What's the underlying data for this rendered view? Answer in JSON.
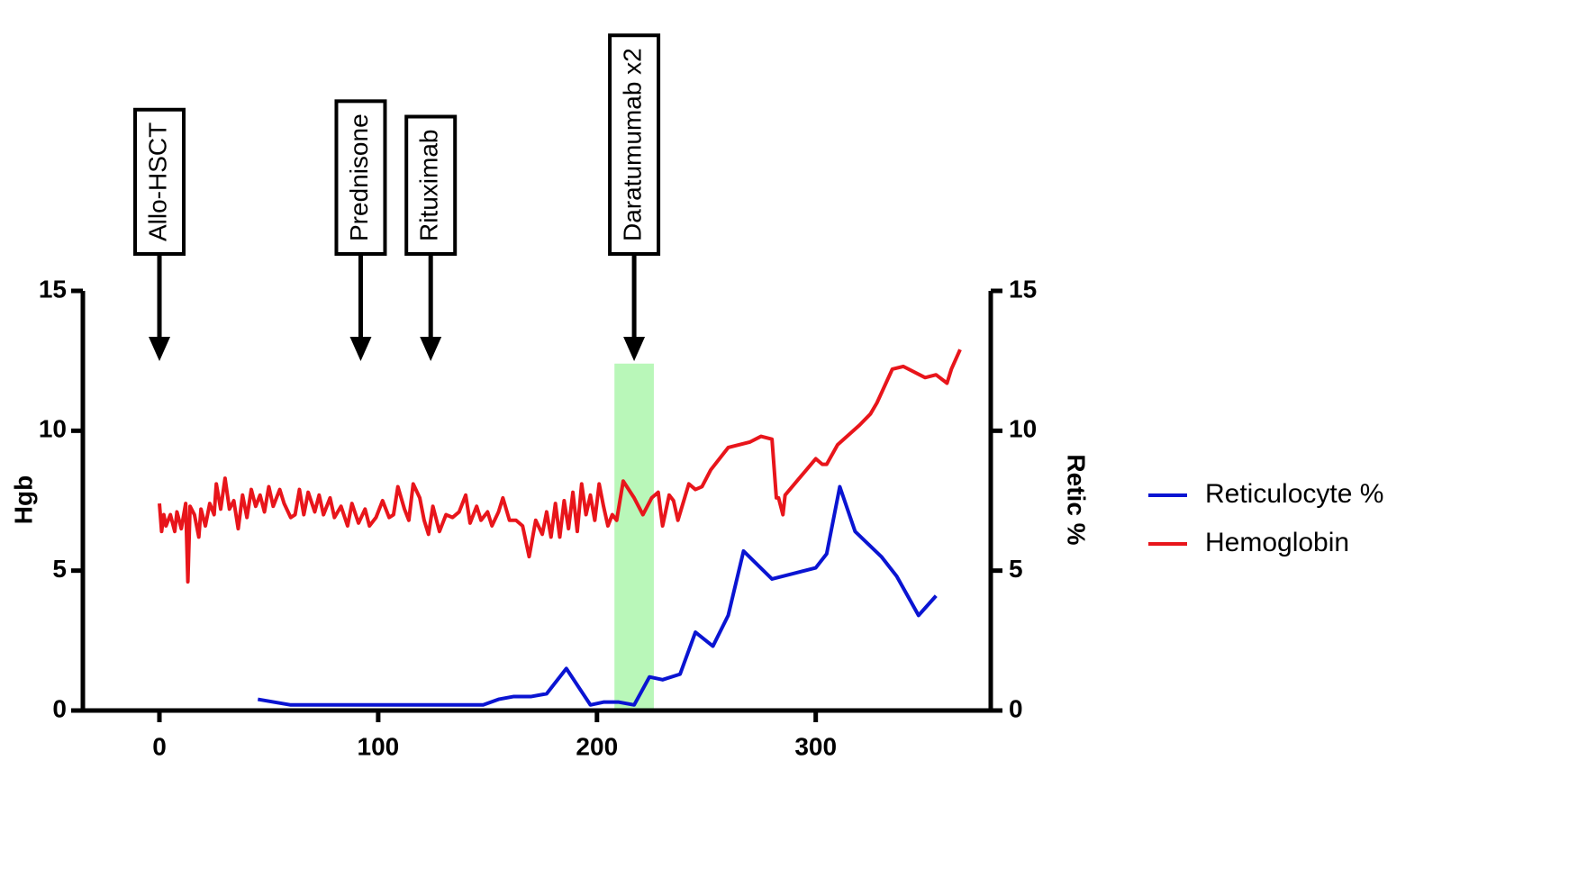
{
  "chart_data": {
    "type": "line",
    "ylabel": "Hgb",
    "y2label": "Retic %",
    "xlim": [
      -35,
      380
    ],
    "xticks": [
      0,
      100,
      200,
      300
    ],
    "ylim": [
      0,
      15
    ],
    "yticks": [
      0,
      5,
      10,
      15
    ],
    "y2lim": [
      0,
      15
    ],
    "y2ticks": [
      0,
      5,
      10,
      15
    ],
    "legend": "right",
    "highlight": {
      "x": [
        208,
        226
      ],
      "top": 12.4,
      "color": "#b9f7b9"
    },
    "annotations": [
      {
        "text": "Allo-HSCT",
        "x": 0
      },
      {
        "text": "Prednisone",
        "x": 92
      },
      {
        "text": "Rituximab",
        "x": 124
      },
      {
        "text": "Daratumumab x2",
        "x": 217
      }
    ],
    "series": [
      {
        "name": "Reticulocyte %",
        "color": "#0a14d2",
        "axis": "y2",
        "x": [
          45,
          60,
          100,
          148,
          155,
          162,
          170,
          177,
          186,
          197,
          203,
          210,
          217,
          224,
          230,
          238,
          245,
          253,
          260,
          267,
          280,
          300,
          305,
          311,
          318,
          330,
          337,
          347,
          355
        ],
        "values": [
          0.4,
          0.2,
          0.2,
          0.2,
          0.4,
          0.5,
          0.5,
          0.6,
          1.5,
          0.2,
          0.3,
          0.3,
          0.2,
          1.2,
          1.1,
          1.3,
          2.8,
          2.3,
          3.4,
          5.7,
          4.7,
          5.1,
          5.6,
          8.0,
          6.4,
          5.5,
          4.8,
          3.4,
          4.1
        ]
      },
      {
        "name": "Hemoglobin",
        "color": "#e8151b",
        "axis": "y",
        "x": [
          0,
          1,
          2,
          3,
          5,
          7,
          8,
          10,
          12,
          13,
          14,
          16,
          18,
          19,
          21,
          23,
          25,
          26,
          28,
          30,
          32,
          34,
          36,
          38,
          40,
          42,
          44,
          46,
          48,
          50,
          52,
          55,
          57,
          60,
          62,
          64,
          66,
          68,
          71,
          73,
          75,
          78,
          80,
          83,
          86,
          88,
          91,
          94,
          96,
          99,
          102,
          105,
          107,
          109,
          112,
          114,
          116,
          119,
          121,
          123,
          125,
          128,
          131,
          134,
          137,
          140,
          142,
          145,
          147,
          150,
          152,
          155,
          157,
          160,
          163,
          166,
          169,
          172,
          175,
          177,
          179,
          181,
          183,
          185,
          187,
          189,
          191,
          193,
          195,
          197,
          199,
          201,
          203,
          205,
          207,
          209,
          212,
          217,
          221,
          225,
          228,
          230,
          233,
          235,
          237,
          242,
          245,
          248,
          252,
          260,
          270,
          275,
          280,
          282,
          283,
          285,
          286,
          300,
          303,
          305,
          310,
          320,
          325,
          328,
          335,
          340,
          350,
          355,
          360,
          362,
          366
        ],
        "values": [
          7.4,
          6.4,
          7.0,
          6.6,
          7.0,
          6.4,
          7.1,
          6.5,
          7.4,
          4.6,
          7.3,
          7.0,
          6.2,
          7.2,
          6.6,
          7.4,
          7.0,
          8.1,
          7.2,
          8.3,
          7.2,
          7.5,
          6.5,
          7.7,
          6.9,
          7.9,
          7.3,
          7.7,
          7.1,
          8.0,
          7.3,
          7.9,
          7.4,
          6.9,
          7.0,
          7.9,
          7.0,
          7.8,
          7.1,
          7.7,
          7.0,
          7.6,
          6.9,
          7.3,
          6.6,
          7.4,
          6.7,
          7.2,
          6.6,
          6.9,
          7.5,
          6.9,
          7.0,
          8.0,
          7.2,
          6.8,
          8.1,
          7.6,
          6.8,
          6.3,
          7.3,
          6.4,
          7.0,
          6.9,
          7.1,
          7.7,
          6.7,
          7.3,
          6.8,
          7.1,
          6.6,
          7.1,
          7.6,
          6.8,
          6.8,
          6.6,
          5.5,
          6.8,
          6.3,
          7.1,
          6.2,
          7.4,
          6.2,
          7.5,
          6.5,
          7.8,
          6.4,
          8.1,
          7.0,
          7.7,
          6.8,
          8.1,
          7.3,
          6.6,
          7.0,
          6.8,
          8.2,
          7.6,
          7.0,
          7.6,
          7.8,
          6.6,
          7.7,
          7.5,
          6.8,
          8.1,
          7.9,
          8.0,
          8.6,
          9.4,
          9.6,
          9.8,
          9.7,
          7.6,
          7.6,
          7.0,
          7.7,
          9.0,
          8.8,
          8.8,
          9.5,
          10.2,
          10.6,
          11.0,
          12.2,
          12.3,
          11.9,
          12.0,
          11.7,
          12.2,
          12.9
        ]
      }
    ]
  }
}
